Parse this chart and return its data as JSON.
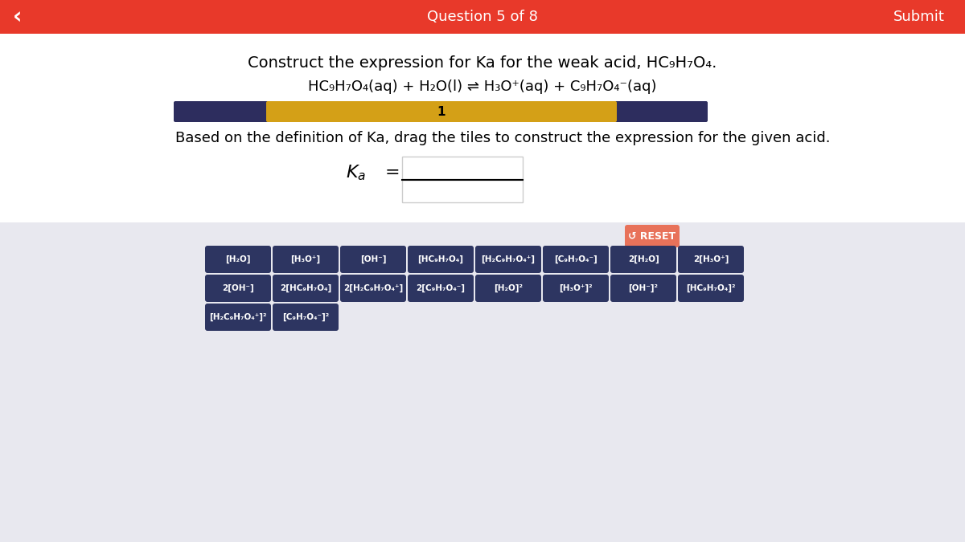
{
  "header_color": "#e8392a",
  "header_text": "Question 5 of 8",
  "submit_text": "Submit",
  "back_arrow": "‹",
  "title": "Construct the expression for Ka for the weak acid, HC₉H₇O₄.",
  "equation": "HC₉H₇O₄(aq) + H₂O(l) ⇌ H₃O⁺(aq) + C₉H₇O₄⁻(aq)",
  "progress_left_color": "#2d2d5e",
  "progress_right_color": "#d4a017",
  "progress_value": 1,
  "progress_max": 8,
  "instruction": "Based on the definition of Ka, drag the tiles to construct the expression for the given acid.",
  "ka_label": "Kₐ =",
  "body_bg": "#e8e8ef",
  "white_section_bg": "#ffffff",
  "tile_bg": "#2d3561",
  "tile_text_color": "#ffffff",
  "reset_bg": "#e8725a",
  "reset_text": "↺ RESET",
  "tiles_row1": [
    "[H₂O]",
    "[H₃O⁺]",
    "[OH⁻]",
    "[HC₉H₇O₄]",
    "[H₂C₉H₇O₄⁺]",
    "[C₉H₇O₄⁻]",
    "2[H₂O]",
    "2[H₃O⁺]"
  ],
  "tiles_row2": [
    "2[OH⁻]",
    "2[HC₉H₇O₄]",
    "2[H₂C₉H₇O₄⁺]",
    "2[C₉H₇O₄⁻]",
    "[H₂O]²",
    "[H₃O⁺]²",
    "[OH⁻]²",
    "[HC₉H₇O₄]²"
  ],
  "tiles_row3": [
    "[H₂C₉H₇O₄⁺]²",
    "[C₉H₇O₄⁻]²"
  ]
}
